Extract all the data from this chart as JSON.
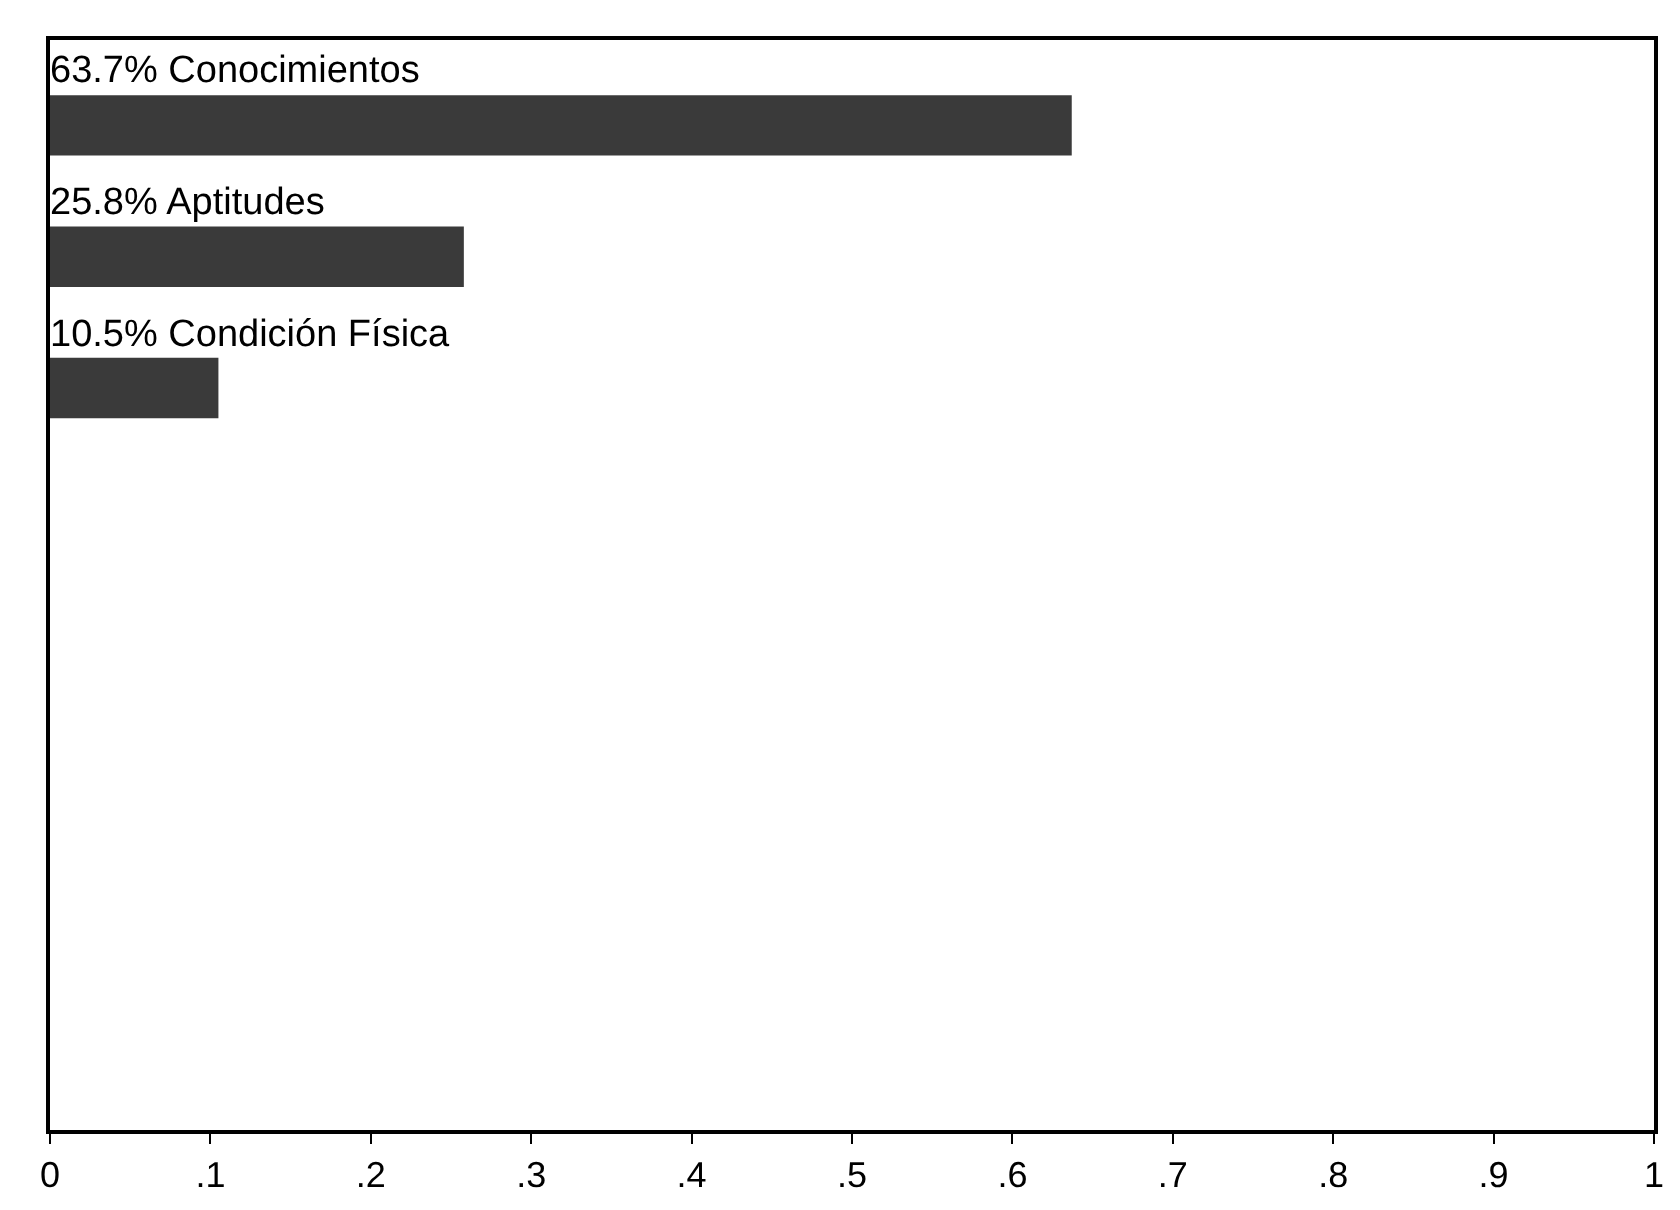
{
  "chart_data": {
    "type": "bar",
    "orientation": "horizontal",
    "categories": [
      "63.7% Conocimientos",
      "25.8% Aptitudes",
      "10.5% Condición Física",
      null,
      null,
      null,
      null,
      null
    ],
    "values": [
      0.637,
      0.258,
      0.105,
      null,
      null,
      null,
      null,
      null
    ],
    "color": "#3a3a3a",
    "xlim": [
      0,
      1
    ],
    "xticks": [
      0,
      {
        "value": 0.1,
        "label": ".1"
      },
      {
        "value": 0.2,
        "label": ".2"
      },
      {
        "value": 0.3,
        "label": ".3"
      },
      {
        "value": 0.4,
        "label": ".4"
      },
      {
        "value": 0.5,
        "label": ".5"
      },
      {
        "value": 0.6,
        "label": ".6"
      },
      {
        "value": 0.7,
        "label": ".7"
      },
      {
        "value": 0.8,
        "label": ".8"
      },
      {
        "value": 0.9,
        "label": ".9"
      },
      1
    ]
  }
}
